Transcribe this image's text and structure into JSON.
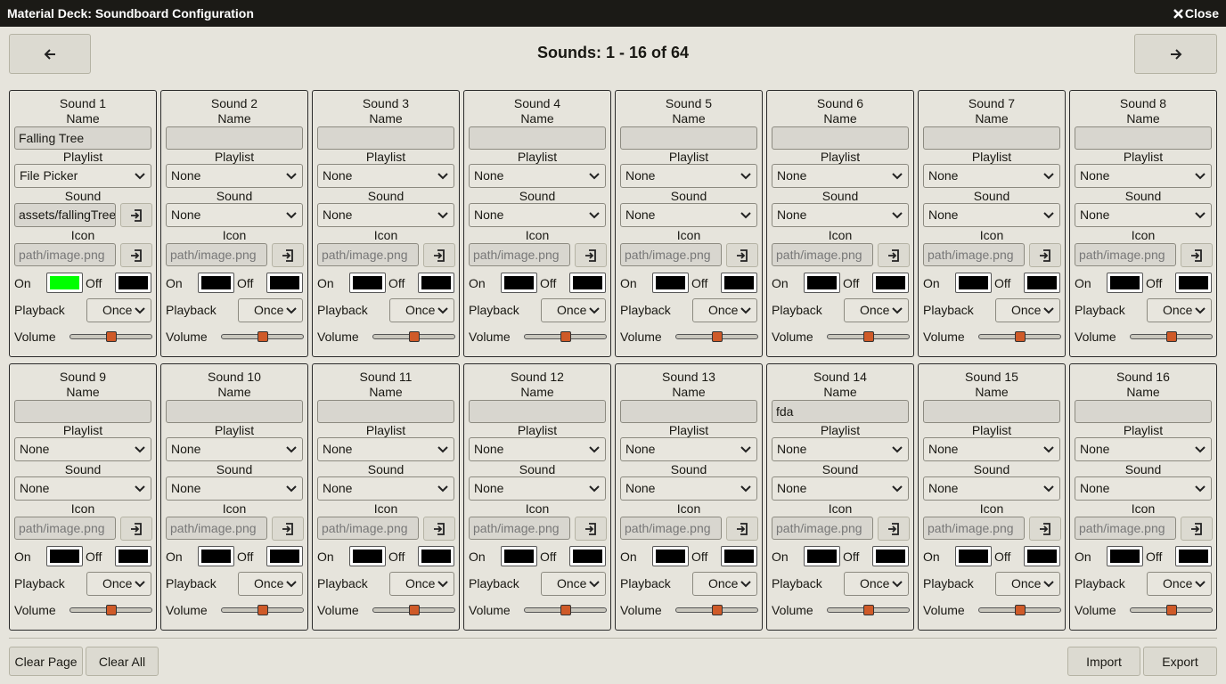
{
  "window": {
    "title": "Material Deck: Soundboard Configuration",
    "close": "Close"
  },
  "nav": {
    "heading": "Sounds: 1 - 16 of 64"
  },
  "labels": {
    "name": "Name",
    "playlist": "Playlist",
    "sound": "Sound",
    "icon": "Icon",
    "icon_placeholder": "path/image.png",
    "on": "On",
    "off": "Off",
    "playback": "Playback",
    "volume": "Volume"
  },
  "sounds": [
    {
      "title": "Sound 1",
      "name": "Falling Tree",
      "playlist": "File Picker",
      "sound_file": "assets/fallingTree",
      "on_color": "#00ff00",
      "off_color": "#000000",
      "playback": "Once",
      "volume": 50
    },
    {
      "title": "Sound 2",
      "playlist": "None",
      "sound": "None",
      "on_color": "#000000",
      "off_color": "#000000",
      "playback": "Once",
      "volume": 50
    },
    {
      "title": "Sound 3",
      "playlist": "None",
      "sound": "None",
      "on_color": "#000000",
      "off_color": "#000000",
      "playback": "Once",
      "volume": 50
    },
    {
      "title": "Sound 4",
      "playlist": "None",
      "sound": "None",
      "on_color": "#000000",
      "off_color": "#000000",
      "playback": "Once",
      "volume": 50
    },
    {
      "title": "Sound 5",
      "playlist": "None",
      "sound": "None",
      "on_color": "#000000",
      "off_color": "#000000",
      "playback": "Once",
      "volume": 50
    },
    {
      "title": "Sound 6",
      "playlist": "None",
      "sound": "None",
      "on_color": "#000000",
      "off_color": "#000000",
      "playback": "Once",
      "volume": 50
    },
    {
      "title": "Sound 7",
      "playlist": "None",
      "sound": "None",
      "on_color": "#000000",
      "off_color": "#000000",
      "playback": "Once",
      "volume": 50
    },
    {
      "title": "Sound 8",
      "playlist": "None",
      "sound": "None",
      "on_color": "#000000",
      "off_color": "#000000",
      "playback": "Once",
      "volume": 50
    },
    {
      "title": "Sound 9",
      "playlist": "None",
      "sound": "None",
      "on_color": "#000000",
      "off_color": "#000000",
      "playback": "Once",
      "volume": 50
    },
    {
      "title": "Sound 10",
      "playlist": "None",
      "sound": "None",
      "on_color": "#000000",
      "off_color": "#000000",
      "playback": "Once",
      "volume": 50
    },
    {
      "title": "Sound 11",
      "playlist": "None",
      "sound": "None",
      "on_color": "#000000",
      "off_color": "#000000",
      "playback": "Once",
      "volume": 50
    },
    {
      "title": "Sound 12",
      "playlist": "None",
      "sound": "None",
      "on_color": "#000000",
      "off_color": "#000000",
      "playback": "Once",
      "volume": 50
    },
    {
      "title": "Sound 13",
      "playlist": "None",
      "sound": "None",
      "on_color": "#000000",
      "off_color": "#000000",
      "playback": "Once",
      "volume": 50
    },
    {
      "title": "Sound 14",
      "name": "fda",
      "playlist": "None",
      "sound": "None",
      "on_color": "#000000",
      "off_color": "#000000",
      "playback": "Once",
      "volume": 50
    },
    {
      "title": "Sound 15",
      "playlist": "None",
      "sound": "None",
      "on_color": "#000000",
      "off_color": "#000000",
      "playback": "Once",
      "volume": 50
    },
    {
      "title": "Sound 16",
      "playlist": "None",
      "sound": "None",
      "on_color": "#000000",
      "off_color": "#000000",
      "playback": "Once",
      "volume": 50
    }
  ],
  "footer": {
    "clear_page": "Clear Page",
    "clear_all": "Clear All",
    "import": "Import",
    "export": "Export"
  }
}
